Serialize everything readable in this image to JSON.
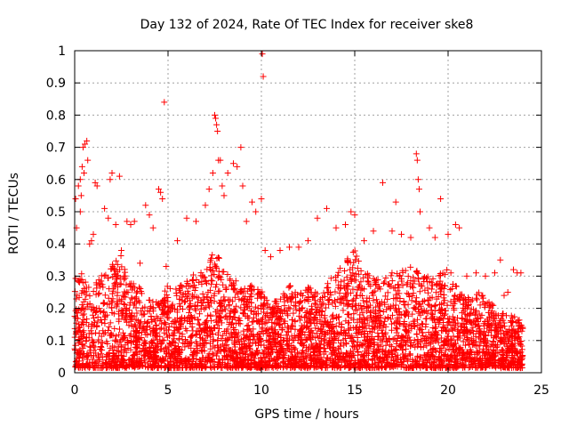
{
  "chart_data": {
    "type": "scatter",
    "title": "Day 132 of 2024, Rate Of TEC Index for receiver ske8",
    "xlabel": "GPS time / hours",
    "ylabel": "ROTI / TECUs",
    "xlim": [
      0,
      25
    ],
    "ylim": [
      0,
      1
    ],
    "xticks": [
      0,
      5,
      10,
      15,
      20,
      25
    ],
    "yticks": [
      0,
      0.1,
      0.2,
      0.3,
      0.4,
      0.5,
      0.6,
      0.7,
      0.8,
      0.9,
      1
    ],
    "grid": true,
    "marker": "+",
    "color": "#ff0000",
    "series": [
      {
        "name": "ROTI",
        "points": [
          [
            0.05,
            0.54
          ],
          [
            0.1,
            0.45
          ],
          [
            0.2,
            0.58
          ],
          [
            0.3,
            0.6
          ],
          [
            0.35,
            0.55
          ],
          [
            0.4,
            0.64
          ],
          [
            0.45,
            0.7
          ],
          [
            0.55,
            0.71
          ],
          [
            0.65,
            0.72
          ],
          [
            0.7,
            0.66
          ],
          [
            0.5,
            0.62
          ],
          [
            0.3,
            0.5
          ],
          [
            0.8,
            0.4
          ],
          [
            0.9,
            0.41
          ],
          [
            1.0,
            0.43
          ],
          [
            1.1,
            0.59
          ],
          [
            1.2,
            0.58
          ],
          [
            1.6,
            0.51
          ],
          [
            1.8,
            0.48
          ],
          [
            1.9,
            0.6
          ],
          [
            2.0,
            0.62
          ],
          [
            2.2,
            0.46
          ],
          [
            2.4,
            0.61
          ],
          [
            2.5,
            0.38
          ],
          [
            2.8,
            0.47
          ],
          [
            3.0,
            0.46
          ],
          [
            3.2,
            0.47
          ],
          [
            3.5,
            0.34
          ],
          [
            3.8,
            0.52
          ],
          [
            4.0,
            0.49
          ],
          [
            4.2,
            0.45
          ],
          [
            4.5,
            0.57
          ],
          [
            4.6,
            0.56
          ],
          [
            4.7,
            0.54
          ],
          [
            4.8,
            0.84
          ],
          [
            4.9,
            0.33
          ],
          [
            5.5,
            0.41
          ],
          [
            6.0,
            0.48
          ],
          [
            6.5,
            0.47
          ],
          [
            7.0,
            0.52
          ],
          [
            7.2,
            0.57
          ],
          [
            7.4,
            0.62
          ],
          [
            7.5,
            0.8
          ],
          [
            7.55,
            0.79
          ],
          [
            7.6,
            0.77
          ],
          [
            7.65,
            0.75
          ],
          [
            7.7,
            0.66
          ],
          [
            7.8,
            0.66
          ],
          [
            7.9,
            0.58
          ],
          [
            8.0,
            0.55
          ],
          [
            8.2,
            0.62
          ],
          [
            8.5,
            0.65
          ],
          [
            8.7,
            0.64
          ],
          [
            8.9,
            0.7
          ],
          [
            9.0,
            0.58
          ],
          [
            9.2,
            0.47
          ],
          [
            9.5,
            0.53
          ],
          [
            9.7,
            0.5
          ],
          [
            10.0,
            0.54
          ],
          [
            10.05,
            0.99
          ],
          [
            10.1,
            0.92
          ],
          [
            10.2,
            0.38
          ],
          [
            10.5,
            0.36
          ],
          [
            11.0,
            0.38
          ],
          [
            11.5,
            0.39
          ],
          [
            12.0,
            0.39
          ],
          [
            12.5,
            0.41
          ],
          [
            13.0,
            0.48
          ],
          [
            13.5,
            0.51
          ],
          [
            14.0,
            0.45
          ],
          [
            14.5,
            0.46
          ],
          [
            14.8,
            0.5
          ],
          [
            15.0,
            0.49
          ],
          [
            15.5,
            0.41
          ],
          [
            16.0,
            0.44
          ],
          [
            16.5,
            0.59
          ],
          [
            17.0,
            0.44
          ],
          [
            17.2,
            0.53
          ],
          [
            17.5,
            0.43
          ],
          [
            18.0,
            0.42
          ],
          [
            18.3,
            0.68
          ],
          [
            18.35,
            0.66
          ],
          [
            18.4,
            0.6
          ],
          [
            18.45,
            0.57
          ],
          [
            18.5,
            0.5
          ],
          [
            19.0,
            0.45
          ],
          [
            19.3,
            0.42
          ],
          [
            19.6,
            0.54
          ],
          [
            20.0,
            0.43
          ],
          [
            20.4,
            0.46
          ],
          [
            20.6,
            0.45
          ],
          [
            21.0,
            0.3
          ],
          [
            21.5,
            0.31
          ],
          [
            22.0,
            0.3
          ],
          [
            22.5,
            0.31
          ],
          [
            22.8,
            0.35
          ],
          [
            23.0,
            0.24
          ],
          [
            23.2,
            0.25
          ],
          [
            23.5,
            0.32
          ],
          [
            23.7,
            0.31
          ],
          [
            23.9,
            0.31
          ]
        ],
        "dense_band": {
          "description_free": true,
          "x_range": [
            0,
            24
          ],
          "envelope": [
            [
              0,
              0.28
            ],
            [
              0.5,
              0.3
            ],
            [
              1,
              0.26
            ],
            [
              1.5,
              0.3
            ],
            [
              2,
              0.33
            ],
            [
              2.5,
              0.35
            ],
            [
              3,
              0.28
            ],
            [
              3.5,
              0.25
            ],
            [
              4,
              0.22
            ],
            [
              4.5,
              0.2
            ],
            [
              5,
              0.26
            ],
            [
              5.5,
              0.25
            ],
            [
              6,
              0.27
            ],
            [
              6.5,
              0.3
            ],
            [
              7,
              0.3
            ],
            [
              7.5,
              0.38
            ],
            [
              8,
              0.3
            ],
            [
              8.5,
              0.28
            ],
            [
              9,
              0.25
            ],
            [
              9.5,
              0.26
            ],
            [
              10,
              0.24
            ],
            [
              10.5,
              0.2
            ],
            [
              11,
              0.22
            ],
            [
              11.5,
              0.27
            ],
            [
              12,
              0.24
            ],
            [
              12.5,
              0.25
            ],
            [
              13,
              0.25
            ],
            [
              13.5,
              0.27
            ],
            [
              14,
              0.3
            ],
            [
              14.5,
              0.33
            ],
            [
              15,
              0.38
            ],
            [
              15.5,
              0.3
            ],
            [
              16,
              0.28
            ],
            [
              16.5,
              0.27
            ],
            [
              17,
              0.3
            ],
            [
              17.5,
              0.3
            ],
            [
              18,
              0.32
            ],
            [
              18.5,
              0.3
            ],
            [
              19,
              0.28
            ],
            [
              19.5,
              0.3
            ],
            [
              20,
              0.33
            ],
            [
              20.5,
              0.25
            ],
            [
              21,
              0.22
            ],
            [
              21.5,
              0.24
            ],
            [
              22,
              0.22
            ],
            [
              22.5,
              0.2
            ],
            [
              23,
              0.17
            ],
            [
              23.5,
              0.16
            ],
            [
              24,
              0.15
            ]
          ]
        }
      }
    ]
  }
}
